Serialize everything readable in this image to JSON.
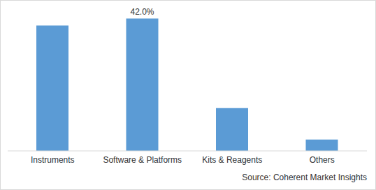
{
  "chart_data": {
    "type": "bar",
    "categories": [
      "Instruments",
      "Software & Platforms",
      "Kits & Reagents",
      "Others"
    ],
    "values": [
      39.8,
      42.0,
      13.6,
      3.6
    ],
    "value_labels": [
      null,
      "42.0%",
      null,
      null
    ],
    "data_labels": true,
    "color": "#5b9bd5",
    "ylim": [
      0,
      45
    ],
    "tick_labels": "x",
    "grid": false,
    "source": "Source: Coherent Market Insights"
  }
}
